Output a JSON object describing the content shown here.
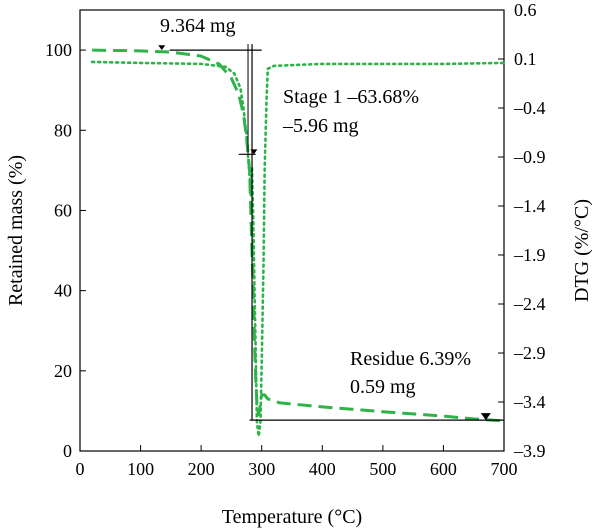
{
  "chart_data": {
    "type": "line",
    "xlabel": "Temperature (°C)",
    "ylabel": "Retained mass (%)",
    "y2label": "DTG (%/°C)",
    "xlim": [
      0,
      700
    ],
    "ylim": [
      0,
      110
    ],
    "y2lim": [
      -3.9,
      0.6
    ],
    "grid": false,
    "x_ticks": [
      0,
      100,
      200,
      300,
      400,
      500,
      600,
      700
    ],
    "y_ticks": [
      0,
      20,
      40,
      60,
      80,
      100
    ],
    "y2_ticks": [
      0.6,
      0.1,
      -0.4,
      -0.9,
      -1.4,
      -1.9,
      -2.4,
      -2.9,
      -3.4,
      -3.9
    ],
    "y2_tick_labels": [
      "0.6",
      "0.1",
      "–0.4",
      "–0.9",
      "–1.4",
      "–1.9",
      "–2.4",
      "–2.9",
      "–3.4",
      "–3.9"
    ],
    "series": [
      {
        "axis": "left",
        "style": "dashed",
        "color": "#2db34a",
        "x": [
          20,
          100,
          150,
          200,
          230,
          250,
          262,
          270,
          275,
          280,
          283,
          286,
          288,
          290,
          292,
          295,
          300,
          305,
          310,
          330,
          400,
          500,
          600,
          650,
          700
        ],
        "y": [
          100,
          99.8,
          99.5,
          98.5,
          96.5,
          93,
          89,
          84,
          78,
          70,
          55,
          40,
          28,
          18,
          12,
          9,
          14,
          14,
          13,
          12,
          11,
          9.8,
          8.7,
          8.0,
          7.5
        ]
      },
      {
        "axis": "right",
        "style": "dotted",
        "color": "#2db34a",
        "x": [
          20,
          100,
          200,
          240,
          255,
          265,
          270,
          275,
          280,
          282,
          284,
          286,
          288,
          290,
          292,
          295,
          298,
          300,
          303,
          305,
          308,
          310,
          320,
          400,
          500,
          600,
          700
        ],
        "y": [
          0.07,
          0.06,
          0.05,
          0.02,
          -0.05,
          -0.2,
          -0.4,
          -0.7,
          -1.1,
          -1.3,
          -1.0,
          -1.5,
          -2.2,
          -2.9,
          -3.6,
          -3.75,
          -3.6,
          -3.0,
          -2.0,
          -1.0,
          -0.3,
          0.0,
          0.03,
          0.05,
          0.05,
          0.05,
          0.06
        ]
      }
    ],
    "annotations": {
      "stage_start": {
        "label": "9.364 mg",
        "x": 135,
        "y": 100,
        "line_x": [
          148,
          300
        ]
      },
      "stage1": {
        "line1": "Stage 1 –63.68%",
        "line2": "–5.96 mg",
        "x": 287,
        "y": 74,
        "line_x": [
          262,
          290
        ]
      },
      "residue": {
        "line1": "Residue 6.39%",
        "line2": "0.59 mg",
        "x": 670,
        "y": 7.7,
        "line_x": [
          280,
          700
        ]
      },
      "drop_line_x": 284
    }
  }
}
